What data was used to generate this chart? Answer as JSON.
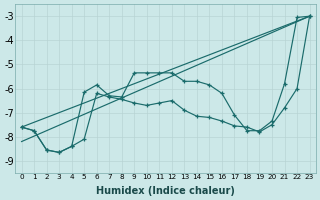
{
  "xlabel": "Humidex (Indice chaleur)",
  "xlim": [
    -0.5,
    23.5
  ],
  "ylim": [
    -9.5,
    -2.5
  ],
  "yticks": [
    -9,
    -8,
    -7,
    -6,
    -5,
    -4,
    -3
  ],
  "xticks": [
    0,
    1,
    2,
    3,
    4,
    5,
    6,
    7,
    8,
    9,
    10,
    11,
    12,
    13,
    14,
    15,
    16,
    17,
    18,
    19,
    20,
    21,
    22,
    23
  ],
  "bg_color": "#cce8e8",
  "grid_color": "#b8d4d4",
  "line_color": "#1a6b6b",
  "line1": {
    "x": [
      0,
      23
    ],
    "y": [
      -7.6,
      -3.0
    ],
    "marker": false
  },
  "line2": {
    "x": [
      0,
      23
    ],
    "y": [
      -8.2,
      -3.0
    ],
    "marker": false
  },
  "line3": {
    "x": [
      0,
      1,
      2,
      3,
      4,
      5,
      6,
      7,
      8,
      9,
      10,
      11,
      12,
      13,
      14,
      15,
      16,
      17,
      18,
      19,
      20,
      21,
      22,
      23
    ],
    "y": [
      -7.6,
      -7.75,
      -8.55,
      -8.65,
      -8.4,
      -6.15,
      -5.85,
      -6.3,
      -6.35,
      -5.35,
      -5.35,
      -5.35,
      -5.35,
      -5.7,
      -5.7,
      -5.85,
      -6.2,
      -7.1,
      -7.75,
      -7.75,
      -7.35,
      -5.8,
      -3.05,
      -3.0
    ],
    "marker": true
  },
  "line4": {
    "x": [
      0,
      1,
      2,
      3,
      4,
      5,
      6,
      7,
      8,
      9,
      10,
      11,
      12,
      13,
      14,
      15,
      16,
      17,
      18,
      19,
      20,
      21,
      22,
      23
    ],
    "y": [
      -7.6,
      -7.75,
      -8.55,
      -8.65,
      -8.4,
      -8.1,
      -6.2,
      -6.35,
      -6.45,
      -6.6,
      -6.7,
      -6.6,
      -6.5,
      -6.9,
      -7.15,
      -7.2,
      -7.35,
      -7.55,
      -7.6,
      -7.8,
      -7.5,
      -6.8,
      -6.0,
      -3.0
    ],
    "marker": true
  }
}
